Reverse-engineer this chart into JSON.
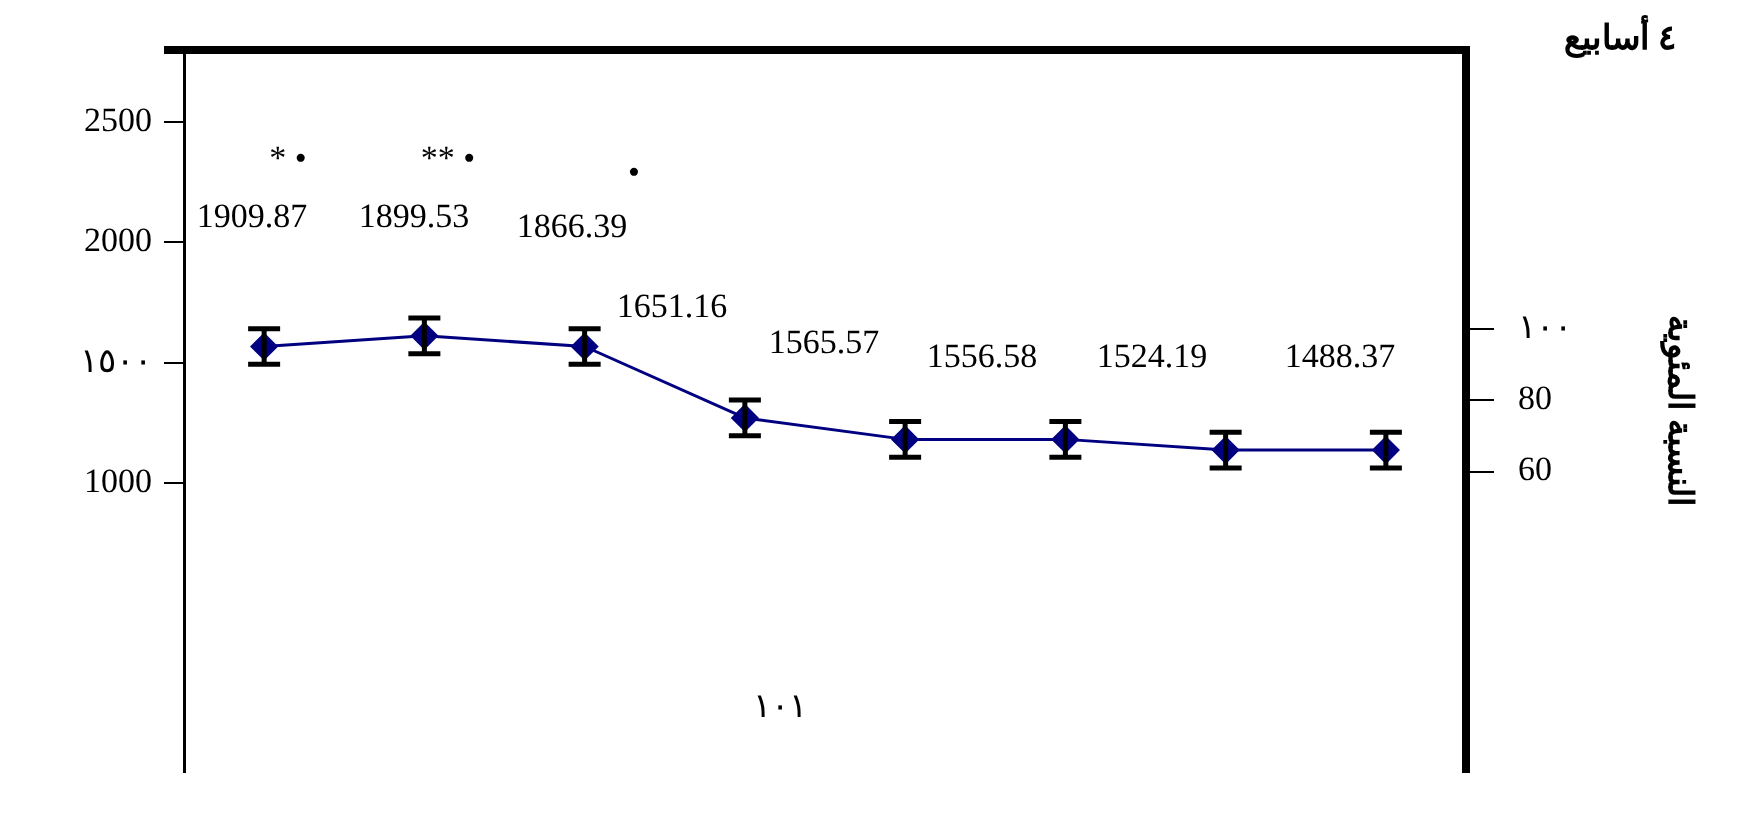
{
  "chart_data": {
    "type": "line",
    "title": "٤ أسابيع",
    "y2label": "النسبة المئوية",
    "categories": [
      null,
      null,
      null,
      null,
      null,
      null,
      null,
      null
    ],
    "series": [
      {
        "color": "#000080",
        "axis": "y2",
        "values": [
          95,
          98,
          95,
          75,
          69,
          69,
          66,
          66
        ],
        "errors": [
          5,
          5,
          5,
          5,
          5,
          5,
          5,
          5
        ]
      }
    ],
    "marker": "diamond",
    "line_style": "solid",
    "ylim": [
      -200,
      2800
    ],
    "yticks": [
      1000,
      {
        "value": 1500,
        "label": "١٥٠٠"
      },
      2000,
      2500
    ],
    "y2lim": [
      -24,
      178
    ],
    "y2ticks": [
      60,
      80,
      {
        "value": 100,
        "label": "١٠٠"
      }
    ],
    "annotations": [
      "1909.87",
      "1899.53",
      "1866.39",
      "1651.16",
      "1565.57",
      "1556.58",
      "1524.19",
      "1488.37",
      "* •",
      "** •",
      "•",
      "١٠١"
    ]
  }
}
